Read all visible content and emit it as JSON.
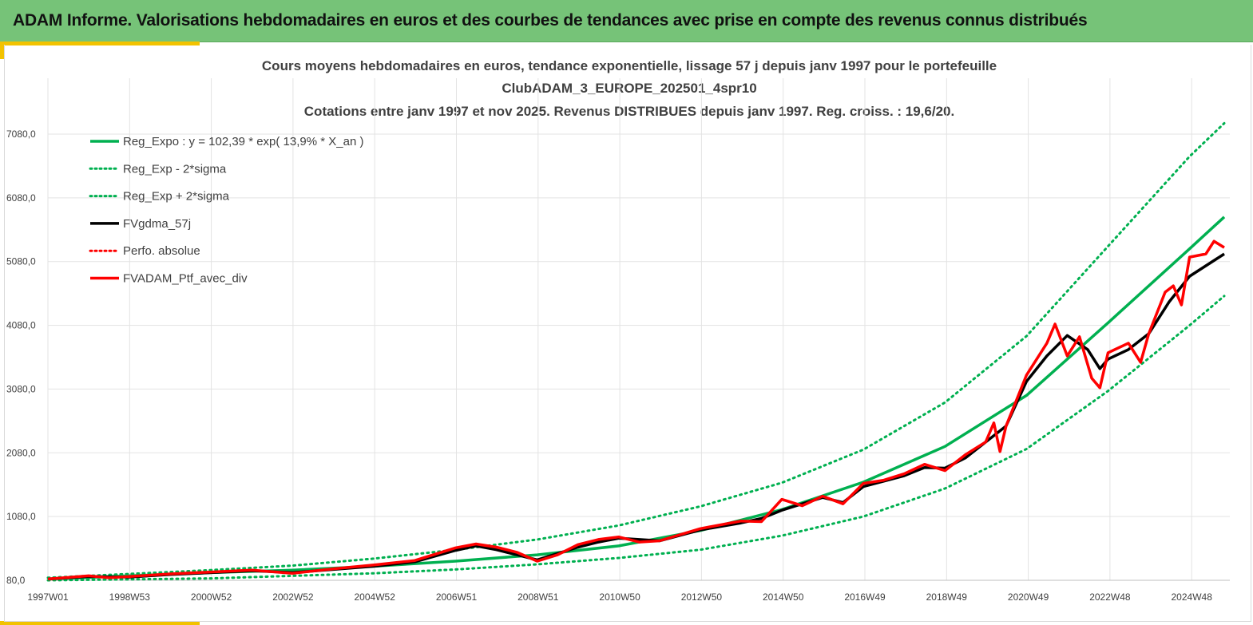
{
  "header": {
    "title": "ADAM Informe. Valorisations hebdomadaires en euros et des courbes de tendances avec prise en compte des revenus connus distribués"
  },
  "colors": {
    "banner": "#76c378",
    "accent": "#f2c200",
    "green": "#00b050",
    "red": "#ff0000",
    "black": "#000000",
    "grid": "#e3e3e3"
  },
  "chart_data": {
    "type": "line",
    "title_lines": [
      "Cours moyens hebdomadaires  en euros, tendance exponentielle, lissage 57 j depuis janv 1997 pour le portefeuille",
      "ClubADAM_3_EUROPE_202501_4spr10",
      "Cotations  entre janv 1997 et nov  2025. Revenus DISTRIBUES depuis janv 1997. Reg. croiss. : 19,6/20."
    ],
    "x_tick_labels": [
      "1997W01",
      "1998W53",
      "2000W52",
      "2002W52",
      "2004W52",
      "2006W51",
      "2008W51",
      "2010W50",
      "2012W50",
      "2014W50",
      "2016W49",
      "2018W49",
      "2020W49",
      "2022W48",
      "2024W48"
    ],
    "x_range_years": [
      1997.0,
      2025.85
    ],
    "y_tick_labels": [
      "80,0",
      "1080,0",
      "2080,0",
      "3080,0",
      "4080,0",
      "5080,0",
      "6080,0",
      "7080,0"
    ],
    "ylim": [
      80,
      7080
    ],
    "grid": true,
    "legend_position": "top-left",
    "legend": [
      {
        "label": "Reg_Expo : y = 102,39 * exp( 13,9% *  X_an )",
        "color": "#00b050",
        "style": "solid"
      },
      {
        "label": "Reg_Exp - 2*sigma",
        "color": "#00b050",
        "style": "dotted"
      },
      {
        "label": "Reg_Exp + 2*sigma",
        "color": "#00b050",
        "style": "dotted"
      },
      {
        "label": "FVgdma_57j",
        "color": "#000000",
        "style": "solid"
      },
      {
        "label": "Perfo. absolue",
        "color": "#ff0000",
        "style": "dotted"
      },
      {
        "label": "FVADAM_Ptf_avec_div",
        "color": "#ff0000",
        "style": "solid"
      }
    ],
    "series": [
      {
        "name": "Reg_Expo : y = 102,39 * exp( 13,9% *  X_an )",
        "x": [
          1997,
          1999,
          2001,
          2003,
          2005,
          2007,
          2009,
          2011,
          2013,
          2015,
          2017,
          2019,
          2021,
          2023,
          2025,
          2025.85
        ],
        "y": [
          100,
          150,
          200,
          240,
          300,
          380,
          480,
          620,
          860,
          1190,
          1620,
          2180,
          2980,
          4120,
          5280,
          5780
        ]
      },
      {
        "name": "Reg_Exp - 2*sigma",
        "x": [
          1997,
          1999,
          2001,
          2003,
          2005,
          2007,
          2009,
          2011,
          2013,
          2015,
          2017,
          2019,
          2021,
          2023,
          2025,
          2025.85
        ],
        "y": [
          80,
          95,
          110,
          150,
          190,
          250,
          330,
          430,
          560,
          780,
          1080,
          1520,
          2140,
          3050,
          4080,
          4540
        ]
      },
      {
        "name": "Reg_Exp + 2*sigma",
        "x": [
          1997,
          1999,
          2001,
          2003,
          2005,
          2007,
          2009,
          2011,
          2013,
          2015,
          2017,
          2019,
          2021,
          2023,
          2025,
          2025.85
        ],
        "y": [
          120,
          180,
          240,
          310,
          420,
          560,
          720,
          940,
          1240,
          1610,
          2130,
          2870,
          3910,
          5320,
          6730,
          7250
        ]
      },
      {
        "name": "FVgdma_57j",
        "x": [
          1997,
          1998,
          1999,
          2000,
          2001,
          2002,
          2003,
          2004,
          2005,
          2006,
          2007,
          2007.5,
          2008,
          2008.5,
          2009,
          2010,
          2010.5,
          2011,
          2012,
          2013,
          2014,
          2014.5,
          2015,
          2016,
          2016.5,
          2017,
          2018,
          2018.5,
          2019,
          2019.5,
          2020,
          2020.2,
          2020.5,
          2021,
          2021.5,
          2022,
          2022.5,
          2022.8,
          2023,
          2023.5,
          2024,
          2024.5,
          2025,
          2025.85
        ],
        "y": [
          100,
          140,
          130,
          170,
          200,
          230,
          200,
          250,
          300,
          370,
          550,
          620,
          560,
          480,
          400,
          600,
          680,
          740,
          700,
          870,
          980,
          1050,
          1180,
          1380,
          1300,
          1550,
          1720,
          1850,
          1840,
          2000,
          2250,
          2350,
          2500,
          3200,
          3600,
          3920,
          3700,
          3400,
          3550,
          3700,
          3950,
          4450,
          4850,
          5200
        ]
      },
      {
        "name": "FVADAM_Ptf_avec_div",
        "x": [
          1997,
          1998,
          1998.5,
          1999,
          2000,
          2001,
          2002,
          2003,
          2004,
          2005,
          2006,
          2007,
          2007.5,
          2008,
          2008.5,
          2009,
          2009.5,
          2010,
          2010.5,
          2011,
          2011.5,
          2012,
          2013,
          2014,
          2014.5,
          2015,
          2015.5,
          2016,
          2016.5,
          2017,
          2017.5,
          2018,
          2018.5,
          2019,
          2019.5,
          2020,
          2020.2,
          2020.35,
          2020.5,
          2021,
          2021.5,
          2021.7,
          2022,
          2022.3,
          2022.6,
          2022.8,
          2023,
          2023.5,
          2023.8,
          2024,
          2024.4,
          2024.6,
          2024.8,
          2025,
          2025.4,
          2025.6,
          2025.85
        ],
        "y": [
          100,
          150,
          120,
          140,
          180,
          210,
          240,
          190,
          260,
          320,
          390,
          590,
          650,
          600,
          520,
          380,
          480,
          640,
          720,
          760,
          680,
          700,
          890,
          1010,
          1000,
          1350,
          1250,
          1400,
          1280,
          1600,
          1650,
          1750,
          1900,
          1800,
          2050,
          2250,
          2550,
          2100,
          2500,
          3300,
          3800,
          4100,
          3600,
          3900,
          3250,
          3100,
          3650,
          3800,
          3500,
          3950,
          4600,
          4700,
          4400,
          5150,
          5200,
          5400,
          5300
        ]
      }
    ]
  }
}
